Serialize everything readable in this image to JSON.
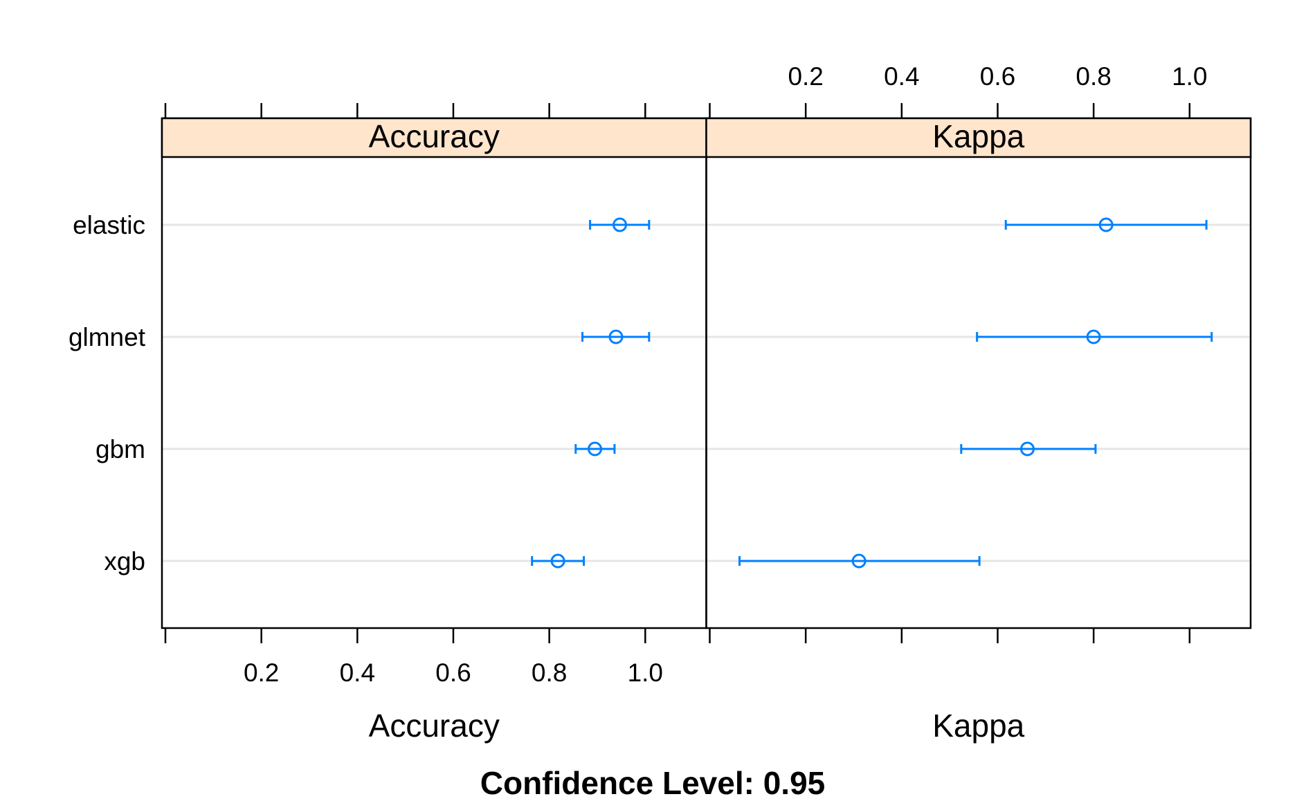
{
  "chart_data": {
    "type": "dotplot",
    "title": "Confidence Level: 0.95",
    "categories": [
      "elastic",
      "glmnet",
      "gbm",
      "xgb"
    ],
    "xlim": [
      0.0,
      1.12
    ],
    "ticks": [
      "0.2",
      "0.4",
      "0.6",
      "0.8",
      "1.0"
    ],
    "tick_values": [
      0.2,
      0.4,
      0.6,
      0.8,
      1.0
    ],
    "panels": [
      {
        "name": "Accuracy",
        "xlabel": "Accuracy",
        "series": [
          {
            "category": "elastic",
            "estimate": 0.947,
            "lower": 0.885,
            "upper": 1.008
          },
          {
            "category": "glmnet",
            "estimate": 0.939,
            "lower": 0.869,
            "upper": 1.008
          },
          {
            "category": "gbm",
            "estimate": 0.895,
            "lower": 0.855,
            "upper": 0.936
          },
          {
            "category": "xgb",
            "estimate": 0.818,
            "lower": 0.764,
            "upper": 0.872
          }
        ]
      },
      {
        "name": "Kappa",
        "xlabel": "Kappa",
        "series": [
          {
            "category": "elastic",
            "estimate": 0.826,
            "lower": 0.617,
            "upper": 1.035
          },
          {
            "category": "glmnet",
            "estimate": 0.8,
            "lower": 0.557,
            "upper": 1.046
          },
          {
            "category": "gbm",
            "estimate": 0.662,
            "lower": 0.524,
            "upper": 0.804
          },
          {
            "category": "xgb",
            "estimate": 0.311,
            "lower": 0.062,
            "upper": 0.562
          }
        ]
      }
    ],
    "colors": {
      "points": "#0080ff",
      "strip": "#ffe5cc",
      "gridline": "#e6e6e6",
      "axis": "#000000"
    },
    "grid": "horizontal",
    "legend": "none"
  }
}
